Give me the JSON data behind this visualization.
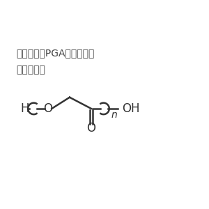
{
  "title_line1": "聚乙醇酸（PGA）产品说明",
  "title_line2": "化学结构：",
  "bg_color": "#ffffff",
  "text_color": "#444444",
  "title_fontsize": 10.0,
  "label_fontsize": 10.0,
  "chem_color": "#333333",
  "atom_H": "H",
  "atom_O": "O",
  "atom_OH": "OH",
  "atom_n": "n",
  "atom_O_carbonyl": "O",
  "figsize": [
    3.0,
    3.0
  ],
  "dpi": 100
}
